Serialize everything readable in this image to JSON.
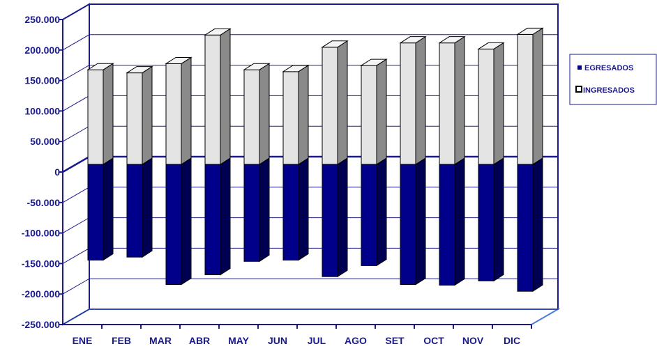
{
  "chart_data": {
    "type": "bar",
    "categories": [
      "ENE",
      "FEB",
      "MAR",
      "ABR",
      "MAY",
      "JUN",
      "JUL",
      "AGO",
      "SET",
      "OCT",
      "NOV",
      "DIC"
    ],
    "series": [
      {
        "name": "EGRESADOS",
        "values": [
          -157000,
          -152000,
          -197000,
          -181000,
          -159000,
          -157000,
          -184000,
          -166000,
          -197000,
          -198000,
          -191000,
          -208000
        ],
        "color": "#00008b"
      },
      {
        "name": "INGRESADOS",
        "values": [
          155000,
          150000,
          165000,
          212000,
          155000,
          152000,
          192000,
          162000,
          199000,
          199000,
          189000,
          213000
        ],
        "color": "#d9d9d9"
      }
    ],
    "yticks": [
      "250.000",
      "200.000",
      "150.000",
      "100.000",
      "50.000",
      "0",
      "-50.000",
      "-100.000",
      "-150.000",
      "-200.000",
      "-250.000"
    ],
    "ylim": [
      -250000,
      250000
    ],
    "title": "",
    "xlabel": "",
    "ylabel": "",
    "grid": true,
    "legend_position": "right",
    "style": "3d-column"
  }
}
